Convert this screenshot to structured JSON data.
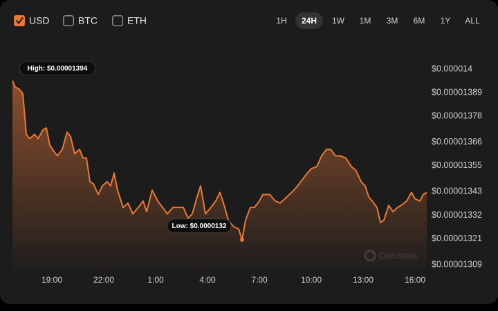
{
  "currencies": [
    {
      "label": "USD",
      "checked": true
    },
    {
      "label": "BTC",
      "checked": false
    },
    {
      "label": "ETH",
      "checked": false
    }
  ],
  "timeframes": [
    "1H",
    "24H",
    "1W",
    "1M",
    "3M",
    "6M",
    "1Y",
    "ALL"
  ],
  "active_timeframe": "24H",
  "chart_data": {
    "type": "line",
    "color": "#e8793a",
    "area": true,
    "grid": false,
    "watermark": "CoinStats",
    "annotations": {
      "high": "High: $0.00001394",
      "low": "Low: $0.0000132"
    },
    "x": [
      16.72,
      16.88,
      17.12,
      17.32,
      17.52,
      17.72,
      18.0,
      18.2,
      18.48,
      18.68,
      18.88,
      19.12,
      19.32,
      19.6,
      19.88,
      20.08,
      20.32,
      20.6,
      20.8,
      21.0,
      21.2,
      21.4,
      21.68,
      21.92,
      22.2,
      22.4,
      22.6,
      22.8,
      23.12,
      23.4,
      23.68,
      24.0,
      24.28,
      24.48,
      24.8,
      25.12,
      25.4,
      25.68,
      26.0,
      26.32,
      26.6,
      26.88,
      27.12,
      27.4,
      27.6,
      27.88,
      28.2,
      28.48,
      28.72,
      29.0,
      29.2,
      29.52,
      29.8,
      30.0,
      30.2,
      30.48,
      30.72,
      31.0,
      31.2,
      31.6,
      31.92,
      32.2,
      32.6,
      33.0,
      33.4,
      33.68,
      34.0,
      34.32,
      34.6,
      34.88,
      35.12,
      35.4,
      35.68,
      36.0,
      36.32,
      36.6,
      36.88,
      37.12,
      37.32,
      37.52,
      37.8,
      38.0,
      38.2,
      38.48,
      38.72,
      39.0,
      39.2,
      39.52,
      39.8,
      40.0,
      40.28,
      40.48,
      40.68
    ],
    "values": [
      1.394e-05,
      1.391e-05,
      1.39e-05,
      1.388e-05,
      1.369e-05,
      1.367e-05,
      1.369e-05,
      1.367e-05,
      1.371e-05,
      1.372e-05,
      1.364e-05,
      1.361e-05,
      1.359e-05,
      1.362e-05,
      1.37e-05,
      1.368e-05,
      1.36e-05,
      1.362e-05,
      1.358e-05,
      1.358e-05,
      1.347e-05,
      1.346e-05,
      1.341e-05,
      1.345e-05,
      1.347e-05,
      1.345e-05,
      1.351e-05,
      1.343e-05,
      1.335e-05,
      1.337e-05,
      1.332e-05,
      1.335e-05,
      1.338e-05,
      1.333e-05,
      1.343e-05,
      1.338e-05,
      1.335e-05,
      1.332e-05,
      1.335e-05,
      1.335e-05,
      1.335e-05,
      1.33e-05,
      1.332e-05,
      1.34e-05,
      1.345e-05,
      1.332e-05,
      1.335e-05,
      1.338e-05,
      1.342e-05,
      1.335e-05,
      1.329e-05,
      1.326e-05,
      1.325e-05,
      1.32e-05,
      1.329e-05,
      1.335e-05,
      1.335e-05,
      1.338e-05,
      1.341e-05,
      1.341e-05,
      1.338e-05,
      1.337e-05,
      1.34e-05,
      1.343e-05,
      1.347e-05,
      1.35e-05,
      1.353e-05,
      1.354e-05,
      1.359e-05,
      1.362e-05,
      1.362e-05,
      1.359e-05,
      1.359e-05,
      1.358e-05,
      1.354e-05,
      1.352e-05,
      1.347e-05,
      1.345e-05,
      1.34e-05,
      1.338e-05,
      1.335e-05,
      1.328e-05,
      1.329e-05,
      1.336e-05,
      1.333e-05,
      1.335e-05,
      1.336e-05,
      1.338e-05,
      1.342e-05,
      1.339e-05,
      1.338e-05,
      1.341e-05,
      1.342e-05
    ],
    "xlim": [
      16.72,
      40.72
    ],
    "xticks": [
      {
        "value": 19,
        "label": "19:00"
      },
      {
        "value": 22,
        "label": "22:00"
      },
      {
        "value": 25,
        "label": "1:00"
      },
      {
        "value": 28,
        "label": "4:00"
      },
      {
        "value": 31,
        "label": "7:00"
      },
      {
        "value": 34,
        "label": "10:00"
      },
      {
        "value": 37,
        "label": "13:00"
      },
      {
        "value": 40,
        "label": "16:00"
      }
    ],
    "ylim": [
      1.309e-05,
      1.4e-05
    ],
    "yticks": [
      {
        "value": 1.4e-05,
        "label": "$0.000014"
      },
      {
        "value": 1.389e-05,
        "label": "$0.00001389"
      },
      {
        "value": 1.378e-05,
        "label": "$0.00001378"
      },
      {
        "value": 1.366e-05,
        "label": "$0.00001366"
      },
      {
        "value": 1.355e-05,
        "label": "$0.00001355"
      },
      {
        "value": 1.343e-05,
        "label": "$0.00001343"
      },
      {
        "value": 1.332e-05,
        "label": "$0.00001332"
      },
      {
        "value": 1.321e-05,
        "label": "$0.00001321"
      },
      {
        "value": 1.309e-05,
        "label": "$0.00001309"
      }
    ]
  }
}
